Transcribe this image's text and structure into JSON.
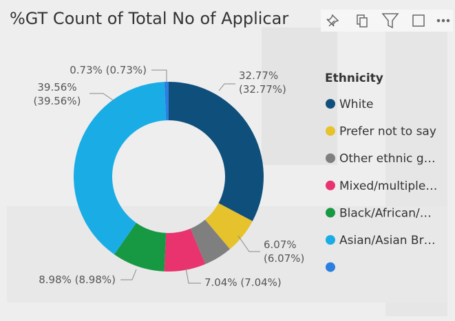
{
  "chart_data": {
    "type": "donut",
    "title": "%GT Count of Total No of Applicar",
    "legend_title": "Ethnicity",
    "categories": [
      "White",
      "Prefer not to say",
      "Other ethnic g…",
      "Mixed/multiple…",
      "Black/African/…",
      "Asian/Asian Br…",
      null
    ],
    "values": [
      32.77,
      6.07,
      4.85,
      7.04,
      8.98,
      39.56,
      0.73
    ],
    "value_labels": [
      "32.77% (32.77%)",
      "6.07% (6.07%)",
      null,
      "7.04% (7.04%)",
      "8.98% (8.98%)",
      "39.56% (39.56%)",
      "0.73% (0.73%)"
    ],
    "colors": [
      "#0e4f7b",
      "#e6c22c",
      "#7f7f7f",
      "#e8336f",
      "#179843",
      "#1aade5",
      "#2c7fe0"
    ],
    "legend": "right"
  }
}
